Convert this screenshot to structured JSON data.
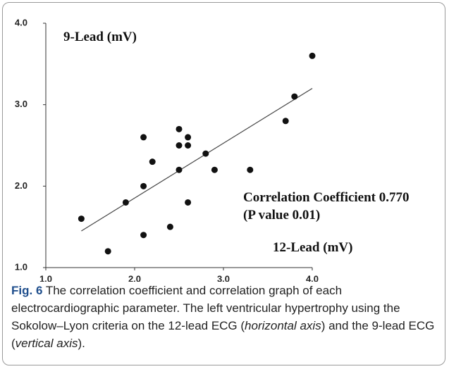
{
  "chart_data": {
    "type": "scatter",
    "x": [
      1.4,
      1.7,
      1.9,
      2.1,
      2.1,
      2.1,
      2.2,
      2.4,
      2.5,
      2.5,
      2.5,
      2.6,
      2.6,
      2.6,
      2.8,
      2.9,
      3.3,
      3.7,
      3.8,
      4.0
    ],
    "values": [
      1.6,
      1.2,
      1.8,
      2.6,
      2.0,
      1.4,
      2.3,
      1.5,
      2.7,
      2.5,
      2.2,
      2.6,
      2.5,
      1.8,
      2.4,
      2.2,
      2.2,
      2.8,
      3.1,
      3.6
    ],
    "color": "#111111",
    "trendline": {
      "x": [
        1.4,
        4.0
      ],
      "y": [
        1.45,
        3.2
      ],
      "color": "#444444"
    },
    "xlim": [
      1,
      4
    ],
    "ylim": [
      1,
      4
    ],
    "xticks": [
      {
        "value": 1,
        "label": "1.0"
      },
      {
        "value": 2,
        "label": "2.0"
      },
      {
        "value": 3,
        "label": "3.0"
      },
      {
        "value": 4,
        "label": "4.0"
      }
    ],
    "yticks": [
      {
        "value": 1,
        "label": "1.0"
      },
      {
        "value": 2,
        "label": "2.0"
      },
      {
        "value": 3,
        "label": "3.0"
      },
      {
        "value": 4,
        "label": "4.0"
      }
    ],
    "ylabel": "9-Lead (mV)",
    "xlabel": "12-Lead (mV)",
    "annotations": [
      "Correlation Coefficient 0.770",
      "(P value 0.01)"
    ]
  },
  "caption": {
    "label": "Fig. 6",
    "parts": [
      " The correlation coefficient and correlation graph of each electrocardiographic parameter. The left ventricular hypertrophy using the Sokolow–Lyon criteria on the 12-lead ECG (",
      "horizontal axis",
      ") and the 9-lead ECG (",
      "vertical axis",
      ")."
    ]
  }
}
